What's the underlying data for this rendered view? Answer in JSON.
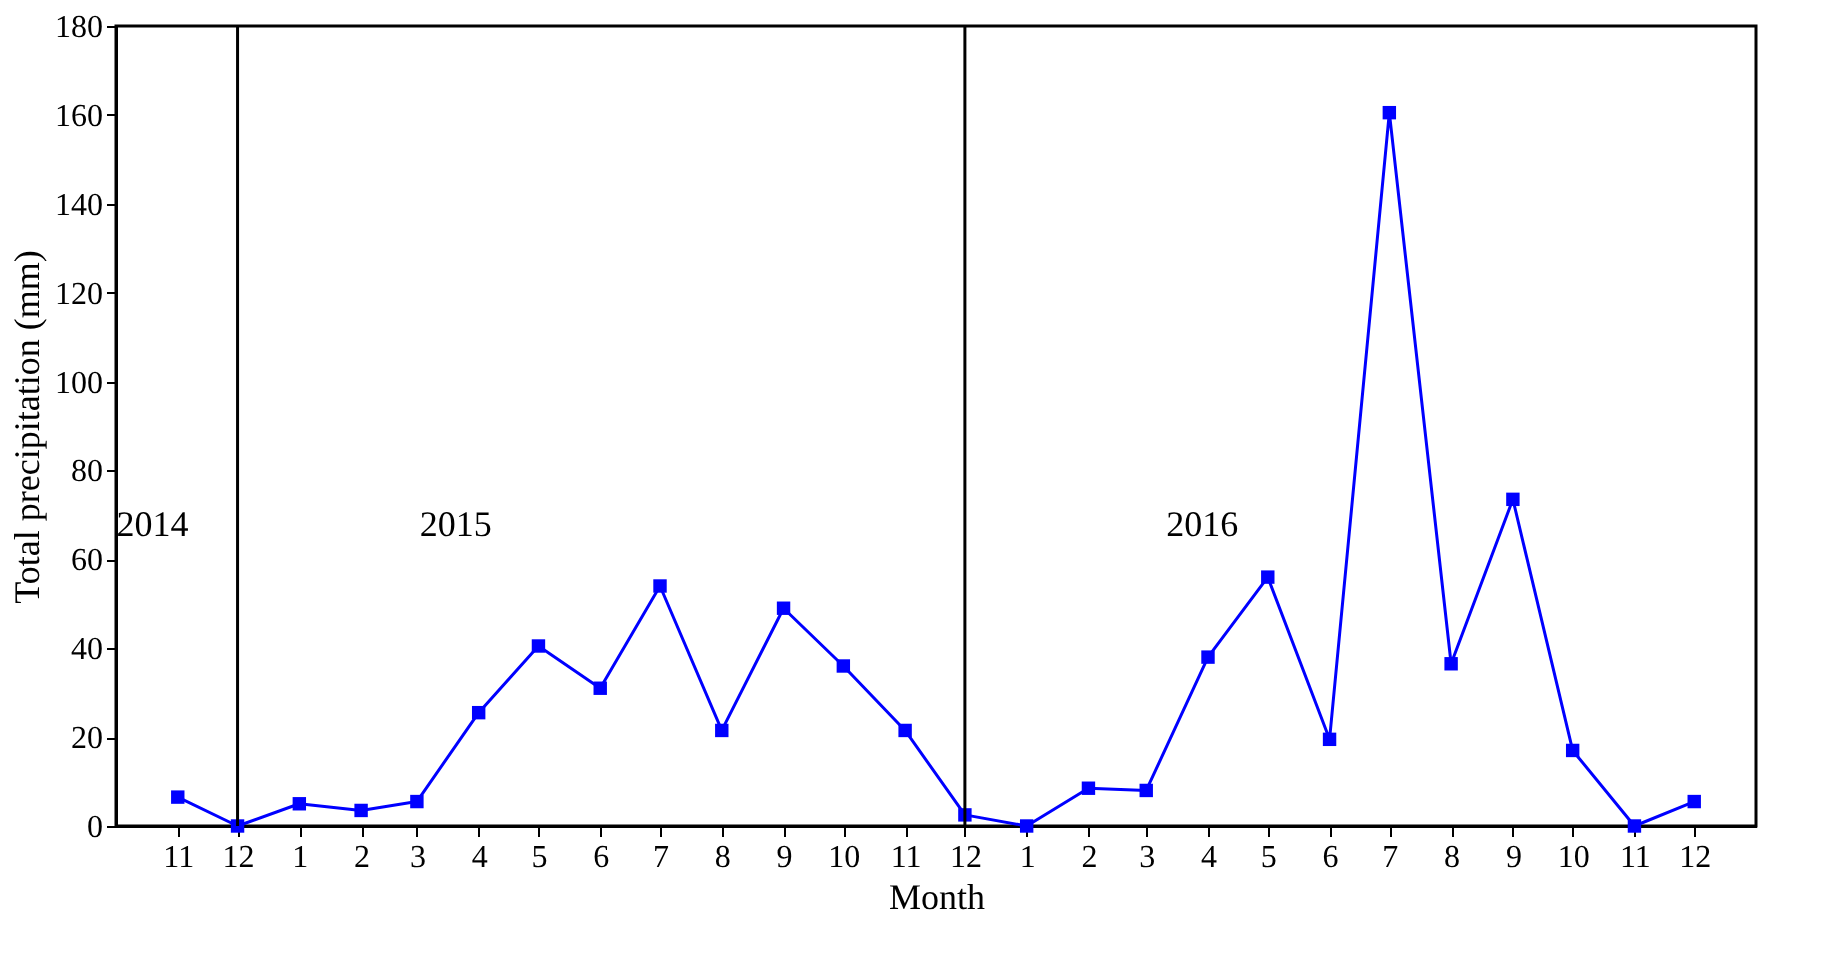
{
  "chart_data": {
    "type": "line",
    "xlabel": "Month",
    "ylabel": "Total precipitation (mm)",
    "x": [
      "2014-11",
      "2014-12",
      "2015-01",
      "2015-02",
      "2015-03",
      "2015-04",
      "2015-05",
      "2015-06",
      "2015-07",
      "2015-08",
      "2015-09",
      "2015-10",
      "2015-11",
      "2015-12",
      "2016-01",
      "2016-02",
      "2016-03",
      "2016-04",
      "2016-05",
      "2016-06",
      "2016-07",
      "2016-08",
      "2016-09",
      "2016-10",
      "2016-11",
      "2016-12"
    ],
    "series": [
      {
        "color": "#0000ff",
        "values": [
          6.5,
          0,
          5,
          3.5,
          5.5,
          25.5,
          40.5,
          31,
          54,
          21.5,
          49,
          36,
          21.5,
          2.5,
          0,
          8.5,
          8,
          38,
          56,
          19.5,
          160.5,
          36.5,
          73.5,
          17,
          0,
          5.5
        ]
      }
    ],
    "xlim": [
      "2014-10",
      "2017-01"
    ],
    "xticks": [
      {
        "value": "2014-11",
        "label": "11"
      },
      {
        "value": "2014-12",
        "label": "12"
      },
      {
        "value": "2015-01",
        "label": "1"
      },
      {
        "value": "2015-02",
        "label": "2"
      },
      {
        "value": "2015-03",
        "label": "3"
      },
      {
        "value": "2015-04",
        "label": "4"
      },
      {
        "value": "2015-05",
        "label": "5"
      },
      {
        "value": "2015-06",
        "label": "6"
      },
      {
        "value": "2015-07",
        "label": "7"
      },
      {
        "value": "2015-08",
        "label": "8"
      },
      {
        "value": "2015-09",
        "label": "9"
      },
      {
        "value": "2015-10",
        "label": "10"
      },
      {
        "value": "2015-11",
        "label": "11"
      },
      {
        "value": "2015-12",
        "label": "12"
      },
      {
        "value": "2016-01",
        "label": "1"
      },
      {
        "value": "2016-02",
        "label": "2"
      },
      {
        "value": "2016-03",
        "label": "3"
      },
      {
        "value": "2016-04",
        "label": "4"
      },
      {
        "value": "2016-05",
        "label": "5"
      },
      {
        "value": "2016-06",
        "label": "6"
      },
      {
        "value": "2016-07",
        "label": "7"
      },
      {
        "value": "2016-08",
        "label": "8"
      },
      {
        "value": "2016-09",
        "label": "9"
      },
      {
        "value": "2016-10",
        "label": "10"
      },
      {
        "value": "2016-11",
        "label": "11"
      },
      {
        "value": "2016-12",
        "label": "12"
      }
    ],
    "ylim": [
      0,
      180
    ],
    "yticks": [
      0,
      20,
      40,
      60,
      80,
      100,
      120,
      140,
      160,
      180
    ],
    "ref_lines": [
      {
        "axis": "x",
        "value": "2014-12",
        "color": "#000000"
      },
      {
        "axis": "x",
        "value": "2015-12",
        "color": "#000000"
      }
    ],
    "annotations": [
      "2014",
      "2015",
      "2016"
    ],
    "marker": "square",
    "line_style": "solid",
    "grid": false
  }
}
